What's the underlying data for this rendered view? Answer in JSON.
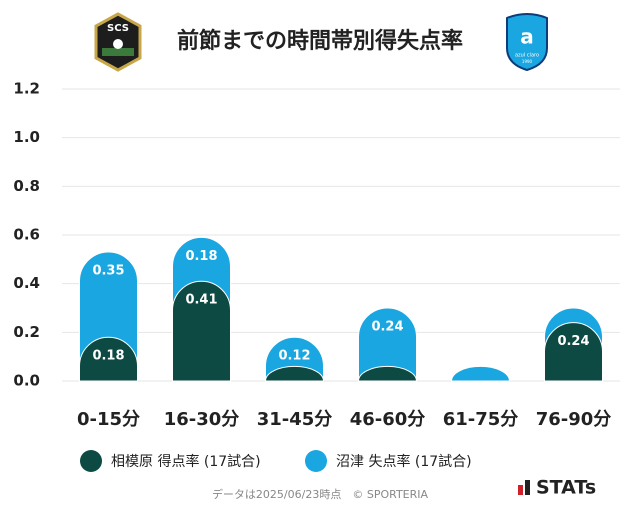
{
  "chart_data": {
    "type": "bar",
    "stacked": true,
    "title": "前節までの時間帯別得失点率",
    "home_logo_text": "SCS",
    "away_logo_text": "azul claro",
    "away_logo_year": "1990",
    "categories": [
      "0-15分",
      "16-30分",
      "31-45分",
      "46-60分",
      "61-75分",
      "76-90分"
    ],
    "series": [
      {
        "name": "相模原 得点率 (17試合)",
        "color": "#0e4a44",
        "values": [
          0.18,
          0.41,
          0.06,
          0.06,
          0,
          0.24
        ]
      },
      {
        "name": "沼津 失点率 (17試合)",
        "color": "#1aa6e0",
        "values": [
          0.35,
          0.18,
          0.12,
          0.24,
          0.06,
          0.06
        ]
      }
    ],
    "ylim": [
      0,
      1.2
    ],
    "yticks": [
      {
        "value": 0,
        "label": "0.0"
      },
      0.2,
      0.4,
      0.6,
      0.8,
      {
        "value": 1,
        "label": "1.0"
      },
      1.2
    ],
    "grid": true,
    "note": "データは2025/06/23時点　© SPORTERIA",
    "brand": "STATs"
  }
}
